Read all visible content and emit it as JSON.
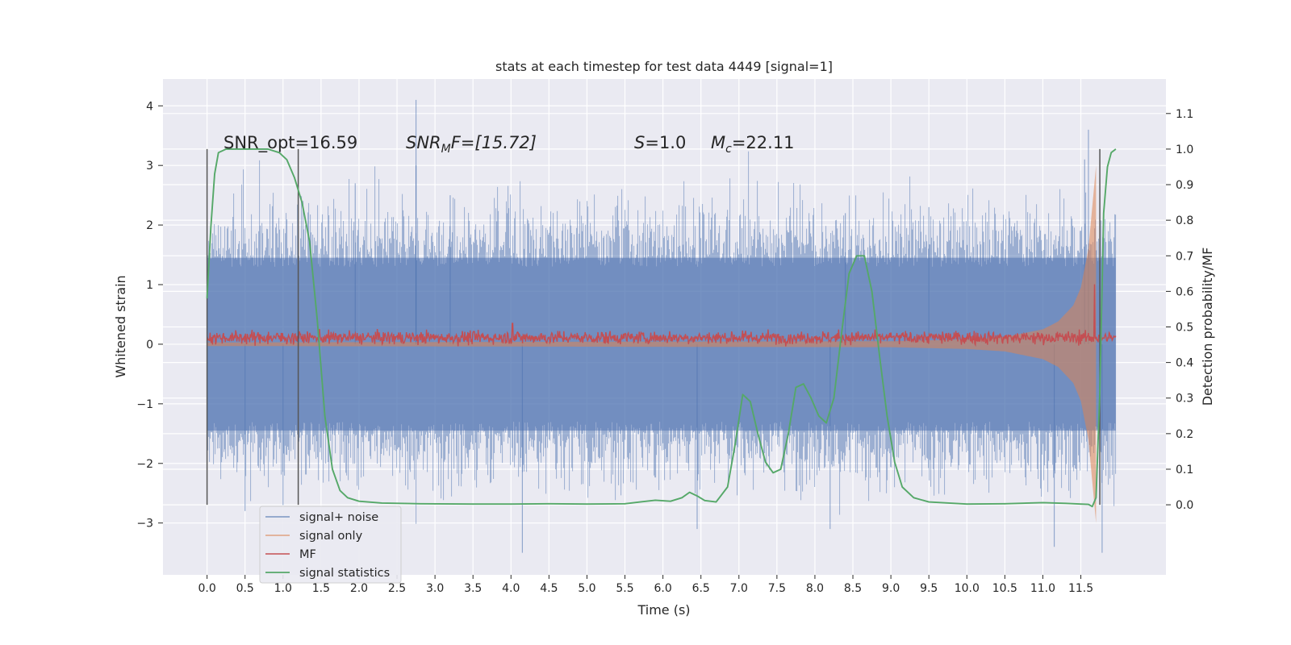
{
  "chart_data": {
    "type": "line",
    "title": "stats at each timestep for test data 4449 [signal=1]",
    "xlabel": "Time (s)",
    "ylabel_left": "Whitened strain",
    "ylabel_right": "Detection probability/MF",
    "xlim": [
      -0.58,
      12.62
    ],
    "ylim_left": [
      -3.87,
      4.45
    ],
    "ylim_right": [
      -0.197,
      1.197
    ],
    "x_ticks": [
      "0.0",
      "0.5",
      "1.0",
      "1.5",
      "2.0",
      "2.5",
      "3.0",
      "3.5",
      "4.0",
      "4.5",
      "5.0",
      "5.5",
      "6.0",
      "6.5",
      "7.0",
      "7.5",
      "8.0",
      "8.5",
      "9.0",
      "9.5",
      "10.0",
      "10.5",
      "11.0",
      "11.5"
    ],
    "y_ticks_left": [
      "4",
      "3",
      "2",
      "1",
      "0",
      "−1",
      "−2",
      "−3"
    ],
    "y_ticks_right": [
      "1.1",
      "1.0",
      "0.9",
      "0.8",
      "0.7",
      "0.6",
      "0.5",
      "0.4",
      "0.3",
      "0.2",
      "0.1",
      "0.0"
    ],
    "grid": true,
    "legend_position": "lower-left",
    "annotations": {
      "snr_opt": "SNR_opt=16.59",
      "snr_mf_label": "SNR",
      "snr_mf_sub": "M",
      "snr_mf_value": "F=[15.72]",
      "s_label": "S",
      "s_value": "=1.0",
      "mc_label": "M",
      "mc_sub": "c",
      "mc_value": "=22.11"
    },
    "vertical_markers_x": [
      0.0,
      1.2,
      11.75
    ],
    "series": [
      {
        "name": "signal+ noise",
        "color": "#4c72b0",
        "axis": "left",
        "style": "dense noise band, roughly ±1.4 core with spikes to about ±2.8",
        "spikes": [
          {
            "x": 2.75,
            "y": 4.1
          },
          {
            "x": 11.6,
            "y": 3.6
          },
          {
            "x": 11.55,
            "y": 3.1
          },
          {
            "x": 2.75,
            "y": 3.0
          },
          {
            "x": 3.2,
            "y": 2.5
          },
          {
            "x": 9.5,
            "y": 2.3
          },
          {
            "x": 8.4,
            "y": 2.2
          },
          {
            "x": 1.95,
            "y": 2.7
          },
          {
            "x": 4.15,
            "y": -3.5
          },
          {
            "x": 11.15,
            "y": -3.4
          },
          {
            "x": 11.78,
            "y": -3.5
          },
          {
            "x": 6.45,
            "y": -3.1
          },
          {
            "x": 8.2,
            "y": -3.1
          },
          {
            "x": 0.5,
            "y": -2.8
          },
          {
            "x": 1.0,
            "y": -2.7
          }
        ]
      },
      {
        "name": "signal only",
        "color": "#dd8452",
        "axis": "left",
        "envelope": {
          "x": [
            0.0,
            9.0,
            10.0,
            10.5,
            11.0,
            11.2,
            11.4,
            11.5,
            11.6,
            11.65,
            11.7
          ],
          "amp": [
            0.03,
            0.05,
            0.08,
            0.12,
            0.25,
            0.38,
            0.65,
            0.95,
            1.6,
            2.3,
            3.0
          ]
        }
      },
      {
        "name": "MF",
        "color": "#c44e52",
        "axis": "right",
        "baseline": 0.47,
        "jitter": 0.015,
        "spikes": [
          {
            "x": 4.02,
            "y": 0.51
          },
          {
            "x": 11.68,
            "y": 0.62
          }
        ]
      },
      {
        "name": "signal statistics",
        "color": "#55a868",
        "axis": "right",
        "x": [
          0.0,
          0.05,
          0.1,
          0.15,
          0.25,
          0.4,
          0.6,
          0.8,
          0.95,
          1.05,
          1.15,
          1.25,
          1.35,
          1.45,
          1.55,
          1.65,
          1.75,
          1.85,
          2.0,
          2.3,
          2.8,
          3.5,
          4.0,
          4.5,
          5.0,
          5.5,
          5.7,
          5.9,
          6.1,
          6.25,
          6.35,
          6.45,
          6.55,
          6.7,
          6.85,
          6.95,
          7.05,
          7.15,
          7.25,
          7.35,
          7.45,
          7.55,
          7.65,
          7.75,
          7.85,
          7.95,
          8.05,
          8.15,
          8.25,
          8.35,
          8.45,
          8.55,
          8.65,
          8.75,
          8.85,
          8.95,
          9.05,
          9.15,
          9.3,
          9.5,
          10.0,
          10.5,
          11.0,
          11.3,
          11.5,
          11.6,
          11.65,
          11.7,
          11.75,
          11.8,
          11.85,
          11.9,
          11.96
        ],
        "y": [
          0.58,
          0.78,
          0.93,
          0.99,
          1.0,
          1.0,
          1.0,
          1.0,
          0.99,
          0.97,
          0.92,
          0.85,
          0.74,
          0.52,
          0.25,
          0.1,
          0.04,
          0.02,
          0.01,
          0.005,
          0.003,
          0.002,
          0.002,
          0.003,
          0.002,
          0.003,
          0.008,
          0.013,
          0.01,
          0.02,
          0.035,
          0.025,
          0.012,
          0.008,
          0.05,
          0.17,
          0.31,
          0.29,
          0.2,
          0.12,
          0.09,
          0.1,
          0.2,
          0.33,
          0.34,
          0.3,
          0.25,
          0.23,
          0.3,
          0.48,
          0.65,
          0.7,
          0.7,
          0.6,
          0.42,
          0.25,
          0.12,
          0.05,
          0.02,
          0.008,
          0.002,
          0.003,
          0.006,
          0.004,
          0.002,
          0.001,
          -0.005,
          0.02,
          0.32,
          0.82,
          0.95,
          0.99,
          1.0
        ]
      }
    ]
  }
}
